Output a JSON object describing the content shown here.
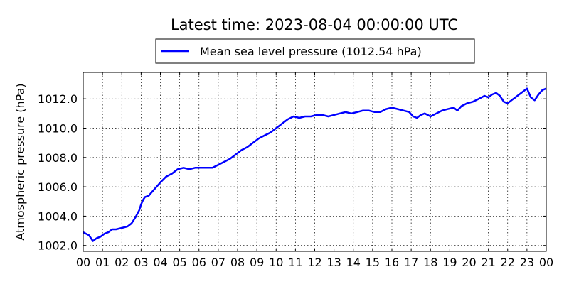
{
  "chart_data": {
    "type": "line",
    "title": "Latest time: 2023-08-04 00:00:00 UTC",
    "xlabel": "",
    "ylabel": "Atmospheric pressure (hPa)",
    "xlim": [
      0,
      24
    ],
    "ylim": [
      1001.6,
      1013.8
    ],
    "x_ticks": [
      0,
      1,
      2,
      3,
      4,
      5,
      6,
      7,
      8,
      9,
      10,
      11,
      12,
      13,
      14,
      15,
      16,
      17,
      18,
      19,
      20,
      21,
      22,
      23,
      24
    ],
    "x_tick_labels": [
      "00",
      "01",
      "02",
      "03",
      "04",
      "05",
      "06",
      "07",
      "08",
      "09",
      "10",
      "11",
      "12",
      "13",
      "14",
      "15",
      "16",
      "17",
      "18",
      "19",
      "20",
      "21",
      "22",
      "23",
      "00"
    ],
    "y_ticks": [
      1002.0,
      1004.0,
      1006.0,
      1008.0,
      1010.0,
      1012.0
    ],
    "y_tick_labels": [
      "1002.0",
      "1004.0",
      "1006.0",
      "1008.0",
      "1010.0",
      "1012.0"
    ],
    "grid": true,
    "legend_position": "top-center",
    "series": [
      {
        "name": "Mean sea level pressure (1012.54 hPa)",
        "color": "#0000ff",
        "x": [
          0,
          0.3,
          0.5,
          0.7,
          0.9,
          1.1,
          1.3,
          1.5,
          1.7,
          2.0,
          2.3,
          2.5,
          2.7,
          2.9,
          3.0,
          3.1,
          3.2,
          3.4,
          3.6,
          3.8,
          4.0,
          4.3,
          4.6,
          4.9,
          5.2,
          5.5,
          5.8,
          6.1,
          6.4,
          6.7,
          7.0,
          7.3,
          7.6,
          7.9,
          8.2,
          8.5,
          8.8,
          9.1,
          9.4,
          9.7,
          10.0,
          10.3,
          10.6,
          10.9,
          11.2,
          11.5,
          11.8,
          12.1,
          12.4,
          12.7,
          13.0,
          13.3,
          13.6,
          13.9,
          14.2,
          14.5,
          14.8,
          15.1,
          15.4,
          15.7,
          16.0,
          16.3,
          16.6,
          16.9,
          17.1,
          17.3,
          17.5,
          17.7,
          18.0,
          18.3,
          18.6,
          18.9,
          19.2,
          19.4,
          19.6,
          19.9,
          20.2,
          20.5,
          20.8,
          21.0,
          21.2,
          21.4,
          21.6,
          21.8,
          22.0,
          22.2,
          22.4,
          22.6,
          22.8,
          23.0,
          23.2,
          23.4,
          23.6,
          23.8,
          24.0
        ],
        "y": [
          1002.9,
          1002.7,
          1002.3,
          1002.5,
          1002.6,
          1002.8,
          1002.9,
          1003.1,
          1003.1,
          1003.2,
          1003.3,
          1003.5,
          1003.9,
          1004.4,
          1004.8,
          1005.1,
          1005.3,
          1005.4,
          1005.7,
          1006.0,
          1006.3,
          1006.7,
          1006.9,
          1007.2,
          1007.3,
          1007.2,
          1007.3,
          1007.3,
          1007.3,
          1007.3,
          1007.5,
          1007.7,
          1007.9,
          1008.2,
          1008.5,
          1008.7,
          1009.0,
          1009.3,
          1009.5,
          1009.7,
          1010.0,
          1010.3,
          1010.6,
          1010.8,
          1010.7,
          1010.8,
          1010.8,
          1010.9,
          1010.9,
          1010.8,
          1010.9,
          1011.0,
          1011.1,
          1011.0,
          1011.1,
          1011.2,
          1011.2,
          1011.1,
          1011.1,
          1011.3,
          1011.4,
          1011.3,
          1011.2,
          1011.1,
          1010.8,
          1010.7,
          1010.9,
          1011.0,
          1010.8,
          1011.0,
          1011.2,
          1011.3,
          1011.4,
          1011.2,
          1011.5,
          1011.7,
          1011.8,
          1012.0,
          1012.2,
          1012.1,
          1012.3,
          1012.4,
          1012.2,
          1011.8,
          1011.7,
          1011.9,
          1012.1,
          1012.3,
          1012.5,
          1012.7,
          1012.1,
          1011.9,
          1012.3,
          1012.6,
          1012.7
        ]
      }
    ]
  }
}
